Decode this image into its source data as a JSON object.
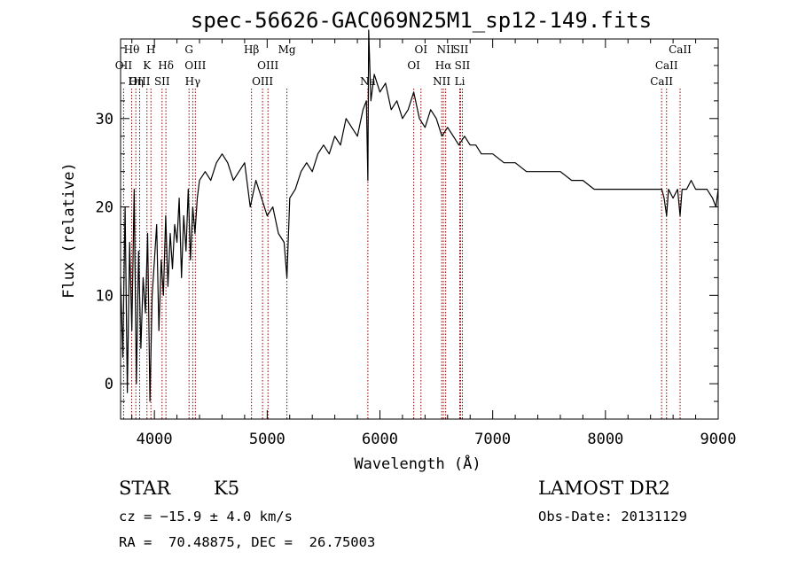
{
  "chart_data": {
    "type": "line",
    "title": "spec-56626-GAC069N25M1_sp12-149.fits",
    "xlabel": "Wavelength (Å)",
    "ylabel": "Flux (relative)",
    "xlim": [
      3700,
      9000
    ],
    "ylim": [
      -4,
      39
    ],
    "xticks": [
      4000,
      5000,
      6000,
      7000,
      8000,
      9000
    ],
    "yticks": [
      0,
      10,
      20,
      30
    ],
    "grid": false,
    "legend": "none",
    "line_color": "#000000",
    "marker_color": "#8b0000",
    "series": [
      {
        "x": [
          3700,
          3720,
          3740,
          3760,
          3780,
          3800,
          3820,
          3840,
          3860,
          3880,
          3900,
          3920,
          3940,
          3960,
          3980,
          4000,
          4020,
          4040,
          4060,
          4080,
          4100,
          4120,
          4140,
          4160,
          4180,
          4200,
          4220,
          4240,
          4260,
          4280,
          4300,
          4320,
          4340,
          4360,
          4380,
          4400,
          4450,
          4500,
          4550,
          4600,
          4650,
          4700,
          4750,
          4800,
          4850,
          4900,
          4950,
          5000,
          5050,
          5100,
          5150,
          5175,
          5200,
          5250,
          5300,
          5350,
          5400,
          5450,
          5500,
          5550,
          5600,
          5650,
          5700,
          5750,
          5800,
          5850,
          5880,
          5893,
          5900,
          5920,
          5950,
          6000,
          6050,
          6100,
          6150,
          6200,
          6250,
          6300,
          6350,
          6400,
          6450,
          6500,
          6550,
          6600,
          6650,
          6700,
          6750,
          6800,
          6850,
          6900,
          6950,
          7000,
          7100,
          7200,
          7300,
          7400,
          7500,
          7600,
          7700,
          7800,
          7900,
          8000,
          8100,
          8200,
          8300,
          8400,
          8450,
          8500,
          8520,
          8542,
          8560,
          8600,
          8640,
          8662,
          8680,
          8720,
          8760,
          8800,
          8850,
          8900,
          8950,
          8980,
          9000
        ],
        "y": [
          12,
          3,
          20,
          -1,
          16,
          6,
          22,
          0,
          15,
          4,
          12,
          8,
          17,
          -2,
          10,
          14,
          18,
          6,
          14,
          10,
          19,
          11,
          17,
          13,
          18,
          16,
          21,
          12,
          19,
          15,
          22,
          14,
          20,
          17,
          21,
          23,
          24,
          23,
          25,
          26,
          25,
          23,
          24,
          25,
          20,
          23,
          21,
          19,
          20,
          17,
          16,
          12,
          21,
          22,
          24,
          25,
          24,
          26,
          27,
          26,
          28,
          27,
          30,
          29,
          28,
          31,
          32,
          23,
          40,
          32,
          35,
          33,
          34,
          31,
          32,
          30,
          31,
          33,
          30,
          29,
          31,
          30,
          28,
          29,
          28,
          27,
          28,
          27,
          27,
          26,
          26,
          26,
          25,
          25,
          24,
          24,
          24,
          24,
          23,
          23,
          22,
          22,
          22,
          22,
          22,
          22,
          22,
          22,
          21,
          19,
          22,
          21,
          22,
          19,
          22,
          22,
          23,
          22,
          22,
          22,
          21,
          20,
          22
        ]
      }
    ],
    "line_ids": [
      {
        "label": "Hθ",
        "row": 1,
        "x": 3798
      },
      {
        "label": "H",
        "row": 1,
        "x": 3969
      },
      {
        "label": "G",
        "row": 1,
        "x": 4307
      },
      {
        "label": "Hβ",
        "row": 1,
        "x": 4861
      },
      {
        "label": "Mg",
        "row": 1,
        "x": 5175
      },
      {
        "label": "OI",
        "row": 1,
        "x": 6364
      },
      {
        "label": "NII",
        "row": 1,
        "x": 6583
      },
      {
        "label": "SII",
        "row": 1,
        "x": 6716
      },
      {
        "label": "CaII",
        "row": 1,
        "x": 8662
      },
      {
        "label": "OII",
        "row": 2,
        "x": 3727
      },
      {
        "label": "K",
        "row": 2,
        "x": 3934
      },
      {
        "label": "Hδ",
        "row": 2,
        "x": 4102
      },
      {
        "label": "OIII",
        "row": 2,
        "x": 4363
      },
      {
        "label": "OIII",
        "row": 2,
        "x": 5007
      },
      {
        "label": "OI",
        "row": 2,
        "x": 6300
      },
      {
        "label": "Hα",
        "row": 2,
        "x": 6563
      },
      {
        "label": "SII",
        "row": 2,
        "x": 6731
      },
      {
        "label": "CaII",
        "row": 2,
        "x": 8542
      },
      {
        "label": "OIII",
        "row": 3,
        "x": 3869
      },
      {
        "label": "Hη",
        "row": 3,
        "x": 3835
      },
      {
        "label": "SII",
        "row": 3,
        "x": 4068
      },
      {
        "label": "Hγ",
        "row": 3,
        "x": 4340
      },
      {
        "label": "OIII",
        "row": 3,
        "x": 4959
      },
      {
        "label": "Na",
        "row": 3,
        "x": 5893
      },
      {
        "label": "NII",
        "row": 3,
        "x": 6548
      },
      {
        "label": "Li",
        "row": 3,
        "x": 6708
      },
      {
        "label": "CaII",
        "row": 3,
        "x": 8498
      }
    ]
  },
  "info": {
    "class": "STAR",
    "subclass": "K5",
    "survey": "LAMOST DR2",
    "cz": "cz = −15.9 ± 4.0 km/s",
    "obsdate": "Obs-Date: 20131129",
    "coords": "RA =  70.48875, DEC =  26.75003"
  }
}
